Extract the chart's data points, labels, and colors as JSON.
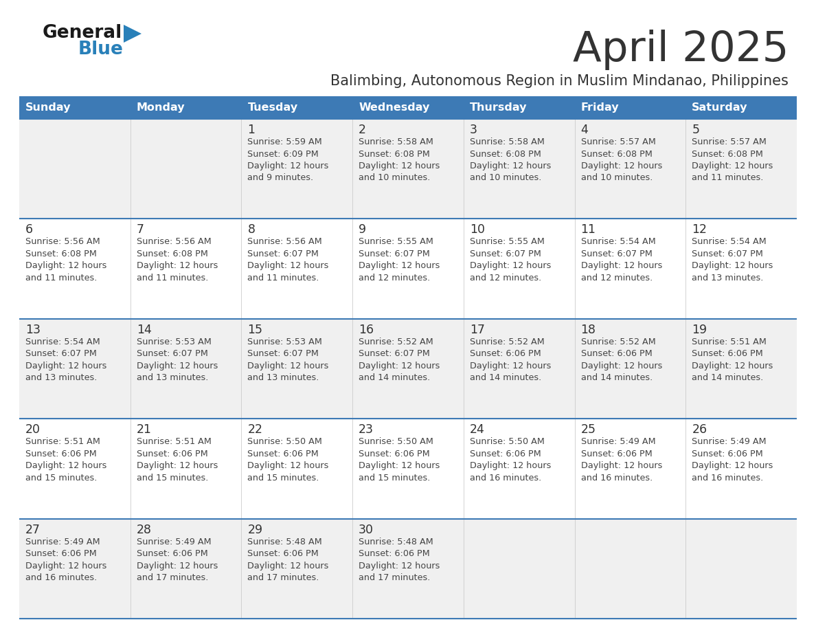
{
  "title": "April 2025",
  "subtitle": "Balimbing, Autonomous Region in Muslim Mindanao, Philippines",
  "days_of_week": [
    "Sunday",
    "Monday",
    "Tuesday",
    "Wednesday",
    "Thursday",
    "Friday",
    "Saturday"
  ],
  "header_bg": "#3d7ab5",
  "header_text": "#ffffff",
  "row_bg_odd": "#f0f0f0",
  "row_bg_even": "#ffffff",
  "day_number_color": "#333333",
  "cell_text_color": "#444444",
  "separator_color": "#3d7ab5",
  "title_color": "#333333",
  "subtitle_color": "#333333",
  "logo_general_color": "#1a1a1a",
  "logo_blue_color": "#2980b9",
  "weeks": [
    [
      {
        "day": null,
        "sunrise": null,
        "sunset": null,
        "daylight_minutes": null
      },
      {
        "day": null,
        "sunrise": null,
        "sunset": null,
        "daylight_minutes": null
      },
      {
        "day": 1,
        "sunrise": "5:59 AM",
        "sunset": "6:09 PM",
        "daylight_minutes": 9
      },
      {
        "day": 2,
        "sunrise": "5:58 AM",
        "sunset": "6:08 PM",
        "daylight_minutes": 10
      },
      {
        "day": 3,
        "sunrise": "5:58 AM",
        "sunset": "6:08 PM",
        "daylight_minutes": 10
      },
      {
        "day": 4,
        "sunrise": "5:57 AM",
        "sunset": "6:08 PM",
        "daylight_minutes": 10
      },
      {
        "day": 5,
        "sunrise": "5:57 AM",
        "sunset": "6:08 PM",
        "daylight_minutes": 11
      }
    ],
    [
      {
        "day": 6,
        "sunrise": "5:56 AM",
        "sunset": "6:08 PM",
        "daylight_minutes": 11
      },
      {
        "day": 7,
        "sunrise": "5:56 AM",
        "sunset": "6:08 PM",
        "daylight_minutes": 11
      },
      {
        "day": 8,
        "sunrise": "5:56 AM",
        "sunset": "6:07 PM",
        "daylight_minutes": 11
      },
      {
        "day": 9,
        "sunrise": "5:55 AM",
        "sunset": "6:07 PM",
        "daylight_minutes": 12
      },
      {
        "day": 10,
        "sunrise": "5:55 AM",
        "sunset": "6:07 PM",
        "daylight_minutes": 12
      },
      {
        "day": 11,
        "sunrise": "5:54 AM",
        "sunset": "6:07 PM",
        "daylight_minutes": 12
      },
      {
        "day": 12,
        "sunrise": "5:54 AM",
        "sunset": "6:07 PM",
        "daylight_minutes": 13
      }
    ],
    [
      {
        "day": 13,
        "sunrise": "5:54 AM",
        "sunset": "6:07 PM",
        "daylight_minutes": 13
      },
      {
        "day": 14,
        "sunrise": "5:53 AM",
        "sunset": "6:07 PM",
        "daylight_minutes": 13
      },
      {
        "day": 15,
        "sunrise": "5:53 AM",
        "sunset": "6:07 PM",
        "daylight_minutes": 13
      },
      {
        "day": 16,
        "sunrise": "5:52 AM",
        "sunset": "6:07 PM",
        "daylight_minutes": 14
      },
      {
        "day": 17,
        "sunrise": "5:52 AM",
        "sunset": "6:06 PM",
        "daylight_minutes": 14
      },
      {
        "day": 18,
        "sunrise": "5:52 AM",
        "sunset": "6:06 PM",
        "daylight_minutes": 14
      },
      {
        "day": 19,
        "sunrise": "5:51 AM",
        "sunset": "6:06 PM",
        "daylight_minutes": 14
      }
    ],
    [
      {
        "day": 20,
        "sunrise": "5:51 AM",
        "sunset": "6:06 PM",
        "daylight_minutes": 15
      },
      {
        "day": 21,
        "sunrise": "5:51 AM",
        "sunset": "6:06 PM",
        "daylight_minutes": 15
      },
      {
        "day": 22,
        "sunrise": "5:50 AM",
        "sunset": "6:06 PM",
        "daylight_minutes": 15
      },
      {
        "day": 23,
        "sunrise": "5:50 AM",
        "sunset": "6:06 PM",
        "daylight_minutes": 15
      },
      {
        "day": 24,
        "sunrise": "5:50 AM",
        "sunset": "6:06 PM",
        "daylight_minutes": 16
      },
      {
        "day": 25,
        "sunrise": "5:49 AM",
        "sunset": "6:06 PM",
        "daylight_minutes": 16
      },
      {
        "day": 26,
        "sunrise": "5:49 AM",
        "sunset": "6:06 PM",
        "daylight_minutes": 16
      }
    ],
    [
      {
        "day": 27,
        "sunrise": "5:49 AM",
        "sunset": "6:06 PM",
        "daylight_minutes": 16
      },
      {
        "day": 28,
        "sunrise": "5:49 AM",
        "sunset": "6:06 PM",
        "daylight_minutes": 17
      },
      {
        "day": 29,
        "sunrise": "5:48 AM",
        "sunset": "6:06 PM",
        "daylight_minutes": 17
      },
      {
        "day": 30,
        "sunrise": "5:48 AM",
        "sunset": "6:06 PM",
        "daylight_minutes": 17
      },
      {
        "day": null,
        "sunrise": null,
        "sunset": null,
        "daylight_minutes": null
      },
      {
        "day": null,
        "sunrise": null,
        "sunset": null,
        "daylight_minutes": null
      },
      {
        "day": null,
        "sunrise": null,
        "sunset": null,
        "daylight_minutes": null
      }
    ]
  ]
}
